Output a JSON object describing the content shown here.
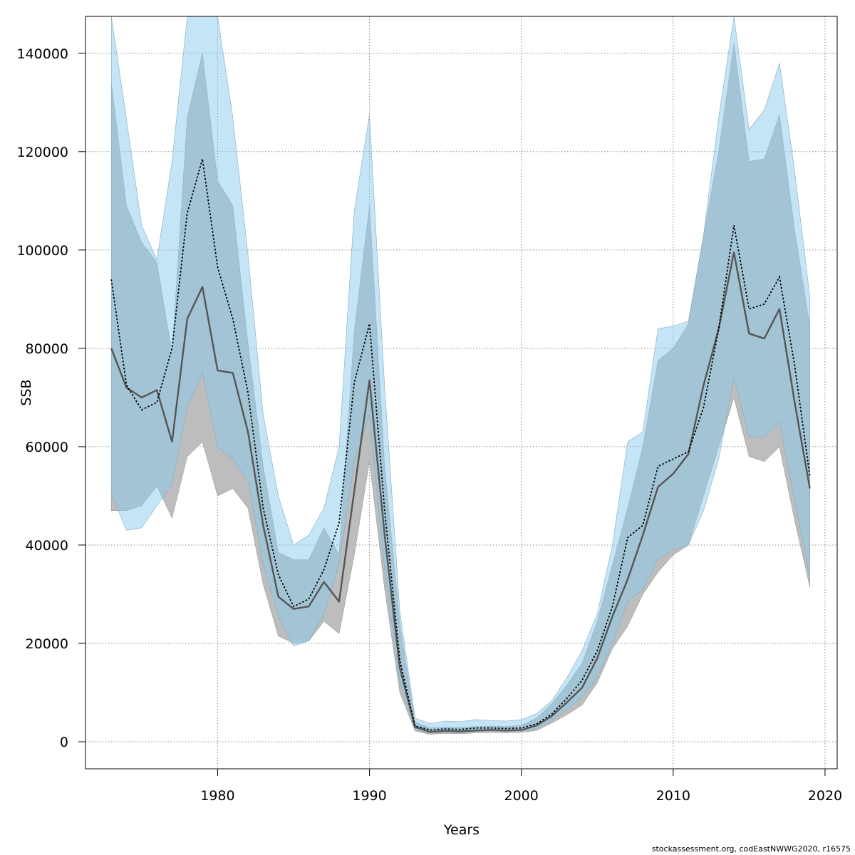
{
  "chart_data": {
    "type": "area",
    "xlabel": "Years",
    "ylabel": "SSB",
    "xlim": [
      1971.3,
      2020.8
    ],
    "ylim": [
      -5500,
      147500
    ],
    "x_ticks": [
      1980,
      1990,
      2000,
      2010,
      2020
    ],
    "y_ticks": [
      0,
      20000,
      40000,
      60000,
      80000,
      100000,
      120000,
      140000
    ],
    "grid": true,
    "colors": {
      "band_grey": "#bdbdbd",
      "band_blue": "#87cbee",
      "line_grey": "#555555",
      "line_dotted": "#000000",
      "grid": "#888888"
    },
    "x": [
      1973,
      1974,
      1975,
      1976,
      1977,
      1978,
      1979,
      1980,
      1981,
      1982,
      1983,
      1984,
      1985,
      1986,
      1987,
      1988,
      1989,
      1990,
      1991,
      1992,
      1993,
      1994,
      1995,
      1996,
      1997,
      1998,
      1999,
      2000,
      2001,
      2002,
      2003,
      2004,
      2005,
      2006,
      2007,
      2008,
      2009,
      2010,
      2011,
      2012,
      2013,
      2014,
      2015,
      2016,
      2017,
      2018,
      2019
    ],
    "series": [
      {
        "style": "solid",
        "values": [
          80000,
          72000,
          70000,
          71500,
          61000,
          86000,
          92500,
          75500,
          75000,
          63000,
          44000,
          29500,
          27000,
          27500,
          32500,
          28500,
          51000,
          73500,
          42000,
          15000,
          3000,
          2000,
          2200,
          2100,
          2300,
          2400,
          2300,
          2400,
          3300,
          5200,
          8000,
          11000,
          17000,
          25500,
          33000,
          42000,
          51800,
          54500,
          58500,
          72500,
          84000,
          99500,
          83000,
          82000,
          88000,
          69000,
          51500
        ],
        "lower": [
          47000,
          47000,
          48000,
          52000,
          45500,
          58000,
          61000,
          50000,
          51500,
          47500,
          32000,
          21500,
          20000,
          20500,
          24500,
          22000,
          38000,
          57000,
          31000,
          10000,
          2200,
          1500,
          1700,
          1600,
          1800,
          1900,
          1800,
          1900,
          2300,
          3800,
          5500,
          7500,
          12000,
          19000,
          23500,
          30000,
          34500,
          38000,
          40000,
          50000,
          60000,
          70000,
          58000,
          57000,
          60000,
          45000,
          31500
        ],
        "upper": [
          134000,
          109000,
          101500,
          97500,
          79000,
          127000,
          140000,
          114000,
          109000,
          81000,
          56000,
          38500,
          37000,
          37000,
          43500,
          38000,
          83500,
          109000,
          56000,
          24000,
          4000,
          2800,
          3000,
          2900,
          3100,
          3200,
          3100,
          3300,
          4800,
          7700,
          11500,
          16000,
          24500,
          36000,
          47500,
          60000,
          77500,
          80000,
          85000,
          103000,
          120000,
          142000,
          118000,
          118500,
          127500,
          104000,
          84500
        ]
      },
      {
        "style": "dotted",
        "values": [
          94000,
          72500,
          67500,
          69000,
          80000,
          107500,
          118500,
          96500,
          86000,
          71000,
          47500,
          34000,
          27500,
          29000,
          35000,
          44500,
          73000,
          85000,
          47000,
          16500,
          3200,
          2400,
          2600,
          2500,
          2800,
          2800,
          2700,
          2800,
          3600,
          5600,
          8800,
          12500,
          18500,
          27500,
          41500,
          44000,
          56000,
          57500,
          59000,
          68000,
          84000,
          105000,
          88000,
          89000,
          94500,
          76500,
          54000
        ],
        "lower": [
          50500,
          43000,
          43500,
          48000,
          52500,
          68000,
          75000,
          60000,
          57500,
          53000,
          36000,
          25500,
          19500,
          20500,
          26000,
          36000,
          57000,
          66500,
          35000,
          12000,
          2500,
          1800,
          2000,
          1900,
          2100,
          2200,
          2100,
          2200,
          2700,
          4300,
          6500,
          9000,
          13000,
          20000,
          28500,
          31000,
          37000,
          39000,
          40000,
          47000,
          57500,
          74000,
          62000,
          62000,
          65000,
          49000,
          33500
        ],
        "upper": [
          172000,
          126500,
          105000,
          98000,
          118000,
          175000,
          185000,
          155000,
          127000,
          99000,
          66500,
          50000,
          40000,
          42000,
          47500,
          60000,
          108000,
          127500,
          72000,
          26500,
          4800,
          3700,
          4200,
          4100,
          4500,
          4300,
          4200,
          4500,
          5700,
          8300,
          13000,
          18500,
          26000,
          40000,
          61000,
          63000,
          84000,
          84500,
          85500,
          103000,
          127000,
          149000,
          124500,
          128500,
          138000,
          116000,
          90500
        ]
      }
    ]
  },
  "footer_note": "stockassessment.org, codEastNWWG2020, r16575"
}
